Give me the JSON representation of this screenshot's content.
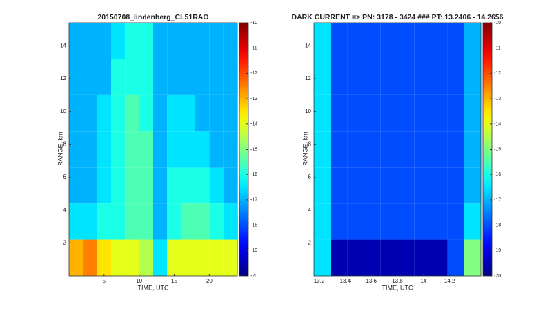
{
  "chart_data": [
    {
      "type": "heatmap",
      "title": "20150708_lindenberg_CL51RAO",
      "x_label": "TIME, UTC",
      "y_label": "RANGE, km",
      "colormap": "jet",
      "clim": [
        -20,
        -10
      ],
      "cticks": [
        -10,
        -11,
        -12,
        -13,
        -14,
        -15,
        -16,
        -17,
        -18,
        -19,
        -20
      ],
      "xlim": [
        0,
        24
      ],
      "ylim": [
        0,
        15.4
      ],
      "xticks": [
        5,
        10,
        15,
        20
      ],
      "yticks": [
        2,
        4,
        6,
        8,
        10,
        12,
        14
      ],
      "x": [
        1,
        3,
        5,
        7,
        9,
        11,
        13,
        15,
        17,
        19,
        21,
        23
      ],
      "y": [
        1.1,
        3.3,
        5.5,
        7.7,
        9.9,
        12.1,
        14.3
      ],
      "z": [
        [
          -13,
          -12.5,
          -13.5,
          -14,
          -14,
          -14.5,
          -16.5,
          -14,
          -14,
          -14,
          -14,
          -14
        ],
        [
          -16.5,
          -16.5,
          -16,
          -16,
          -15.5,
          -15.5,
          -17,
          -16,
          -15.5,
          -15.5,
          -16,
          -16.5
        ],
        [
          -17,
          -17,
          -16.5,
          -16,
          -15.5,
          -15.5,
          -17,
          -16,
          -16,
          -16,
          -16.5,
          -17
        ],
        [
          -17,
          -17,
          -16.5,
          -16,
          -15.5,
          -15.5,
          -17,
          -16.5,
          -16.5,
          -16.5,
          -17,
          -17
        ],
        [
          -17,
          -17,
          -16.5,
          -16,
          -15.5,
          -16,
          -17,
          -16.5,
          -16.5,
          -17,
          -17,
          -17
        ],
        [
          -17,
          -17,
          -17,
          -16,
          -16,
          -16,
          -17,
          -17,
          -17,
          -17,
          -17,
          -17
        ],
        [
          -17,
          -17,
          -17,
          -16.5,
          -16,
          -16,
          -17,
          -17,
          -17,
          -17,
          -17,
          -17
        ]
      ]
    },
    {
      "type": "heatmap",
      "title": "DARK CURRENT => PN: 3178 - 3424   ###   PT: 13.2406 - 14.2656",
      "x_label": "TIME, UTC",
      "y_label": "RANGE, km",
      "colormap": "jet",
      "clim": [
        -20,
        -10
      ],
      "cticks": [
        -10,
        -11,
        -12,
        -13,
        -14,
        -15,
        -16,
        -17,
        -18,
        -19,
        -20
      ],
      "xlim": [
        13.16,
        14.44
      ],
      "ylim": [
        0,
        15.4
      ],
      "xticks": [
        13.2,
        13.4,
        13.6,
        13.8,
        14,
        14.2
      ],
      "yticks": [
        2,
        4,
        6,
        8,
        10,
        12,
        14
      ],
      "x": [
        13.224,
        13.352,
        13.48,
        13.608,
        13.736,
        13.864,
        13.992,
        14.12,
        14.248,
        14.376
      ],
      "y": [
        1.1,
        3.3,
        5.5,
        7.7,
        9.9,
        12.1,
        14.3
      ],
      "z": [
        [
          -16.5,
          -19.5,
          -19.5,
          -19.5,
          -19.5,
          -19.5,
          -19.5,
          -19.5,
          -18,
          -15
        ],
        [
          -16.5,
          -18,
          -18,
          -18,
          -18,
          -18,
          -18,
          -18,
          -18,
          -16.5
        ],
        [
          -16.5,
          -18,
          -18,
          -18,
          -18,
          -18,
          -18,
          -18,
          -18,
          -17
        ],
        [
          -16.5,
          -18,
          -18,
          -18,
          -18,
          -18,
          -18,
          -18,
          -18,
          -17
        ],
        [
          -16.5,
          -18,
          -18,
          -18,
          -18,
          -18,
          -18,
          -18,
          -18,
          -17
        ],
        [
          -16.5,
          -18,
          -18,
          -18,
          -18,
          -18,
          -18,
          -18,
          -18,
          -17
        ],
        [
          -16.5,
          -18,
          -18,
          -18,
          -18,
          -18,
          -18,
          -18,
          -18,
          -17
        ]
      ]
    }
  ]
}
